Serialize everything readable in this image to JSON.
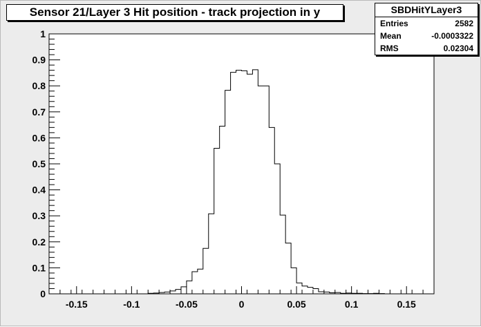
{
  "window": {
    "title": "Sensor 21/Layer 3 Hit position - track projection in y"
  },
  "stats": {
    "name": "SBDHitYLayer3",
    "rows": [
      {
        "label": "Entries",
        "value": "2582"
      },
      {
        "label": "Mean",
        "value": "-0.0003322"
      },
      {
        "label": "RMS",
        "value": "0.02304"
      }
    ]
  },
  "colors": {
    "canvas_background": "#ececec",
    "plot_background": "#ffffff",
    "histogram_line": "#000000"
  },
  "chart_data": {
    "type": "histogram",
    "title": "Sensor 21/Layer 3 Hit position - track projection in y",
    "xlabel": "",
    "ylabel": "",
    "xlim": [
      -0.175,
      0.175
    ],
    "ylim": [
      0,
      1
    ],
    "grid": false,
    "legend": "stats box top-right",
    "x_ticks": [
      {
        "value": -0.15,
        "label": "-0.15"
      },
      {
        "value": -0.1,
        "label": "-0.1"
      },
      {
        "value": -0.05,
        "label": "-0.05"
      },
      {
        "value": 0,
        "label": "0"
      },
      {
        "value": 0.05,
        "label": "0.05"
      },
      {
        "value": 0.1,
        "label": "0.1"
      },
      {
        "value": 0.15,
        "label": "0.15"
      }
    ],
    "y_ticks": [
      {
        "value": 0,
        "label": "0"
      },
      {
        "value": 0.1,
        "label": "0.1"
      },
      {
        "value": 0.2,
        "label": "0.2"
      },
      {
        "value": 0.3,
        "label": "0.3"
      },
      {
        "value": 0.4,
        "label": "0.4"
      },
      {
        "value": 0.5,
        "label": "0.5"
      },
      {
        "value": 0.6,
        "label": "0.6"
      },
      {
        "value": 0.7,
        "label": "0.7"
      },
      {
        "value": 0.8,
        "label": "0.8"
      },
      {
        "value": 0.9,
        "label": "0.9"
      },
      {
        "value": 1,
        "label": "1"
      }
    ],
    "bin_low": -0.175,
    "bin_width": 0.005,
    "values": [
      0,
      0,
      0,
      0,
      0,
      0,
      0,
      0,
      0,
      0,
      0,
      0,
      0,
      0,
      0,
      0,
      0,
      0,
      0.002,
      0.003,
      0.005,
      0.007,
      0.011,
      0.017,
      0.027,
      0.05,
      0.085,
      0.095,
      0.175,
      0.308,
      0.56,
      0.645,
      0.783,
      0.852,
      0.86,
      0.858,
      0.845,
      0.862,
      0.8,
      0.8,
      0.64,
      0.5,
      0.303,
      0.195,
      0.1,
      0.042,
      0.03,
      0.025,
      0.02,
      0.008,
      0.007,
      0.004,
      0.005,
      0.002,
      0.003,
      0.002,
      0.002,
      0.001,
      0.001,
      0.002,
      0.001,
      0,
      0,
      0,
      0,
      0,
      0,
      0,
      0,
      0
    ]
  }
}
